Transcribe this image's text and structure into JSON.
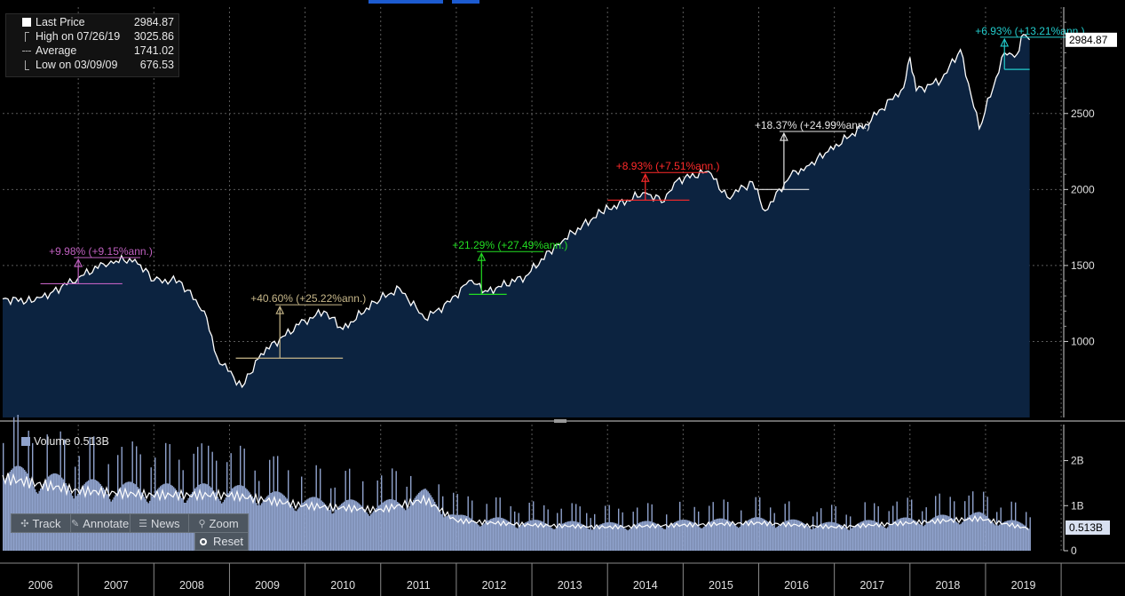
{
  "legend": {
    "last_price_label": "Last Price",
    "last_price_value": "2984.87",
    "high_label": "High on 07/26/19",
    "high_value": "3025.86",
    "average_label": "Average",
    "average_value": "1741.02",
    "low_label": "Low on 03/09/09",
    "low_value": "676.53"
  },
  "volume_legend": {
    "label": "Volume 0.513B"
  },
  "toolbar": {
    "track": "Track",
    "annotate": "Annotate",
    "news": "News",
    "zoom": "Zoom",
    "reset": "Reset"
  },
  "colors": {
    "price_line": "#ffffff",
    "area_fill": "#0c2340",
    "volume_fill": "#8fa2cc",
    "gridline": "#5a5a5a",
    "purple": "#c060c0",
    "tan": "#c8b88a",
    "green": "#22dd22",
    "red": "#ff2a2a",
    "white": "#e6e6e6",
    "cyan": "#22cccc"
  },
  "chart_data": [
    {
      "type": "line",
      "title": "",
      "series": [
        {
          "x": [
            "2006-01",
            "2006-06",
            "2006-09",
            "2007-01",
            "2007-05",
            "2007-07",
            "2007-10",
            "2008-01",
            "2008-05",
            "2008-09",
            "2008-11",
            "2009-03",
            "2009-06",
            "2009-12",
            "2010-04",
            "2010-07",
            "2010-12",
            "2011-04",
            "2011-08",
            "2011-12",
            "2012-03",
            "2012-06",
            "2012-12",
            "2013-05",
            "2013-12",
            "2014-07",
            "2014-10",
            "2014-12",
            "2015-05",
            "2015-08",
            "2015-12",
            "2016-02",
            "2016-06",
            "2016-09",
            "2016-12",
            "2017-06",
            "2017-12",
            "2018-01",
            "2018-02",
            "2018-06",
            "2018-09",
            "2018-12",
            "2019-04",
            "2019-06",
            "2019-07",
            "2019-08"
          ],
          "values": [
            1280,
            1265,
            1330,
            1420,
            1510,
            1530,
            1540,
            1400,
            1400,
            1200,
            900,
            700,
            920,
            1110,
            1200,
            1080,
            1260,
            1350,
            1150,
            1260,
            1400,
            1330,
            1430,
            1640,
            1850,
            1980,
            1920,
            2060,
            2120,
            1950,
            2050,
            1860,
            2090,
            2160,
            2250,
            2430,
            2670,
            2870,
            2650,
            2720,
            2920,
            2400,
            2900,
            2890,
            3020,
            2984.87
          ]
        }
      ],
      "right_axis_ticks": [
        "1000",
        "1500",
        "2000",
        "2500"
      ],
      "last_value_label": "2984.87",
      "ylim": [
        500,
        3200
      ],
      "xlim": [
        "2006-01",
        "2019-12"
      ],
      "annotations": [
        {
          "label": "+9.98% (+9.15%ann.)",
          "color": "purple",
          "base": 1380,
          "peak": 1540,
          "x_start": "2006-07",
          "x_end": "2007-08",
          "x_arrow": "2007-01"
        },
        {
          "label": "+40.60% (+25.22%ann.)",
          "color": "tan",
          "base": 890,
          "peak": 1230,
          "x_start": "2009-02",
          "x_end": "2010-07",
          "x_arrow": "2009-09"
        },
        {
          "label": "+21.29% (+27.49%ann.)",
          "color": "green",
          "base": 1310,
          "peak": 1580,
          "x_start": "2012-03",
          "x_end": "2012-09",
          "x_arrow": "2012-05"
        },
        {
          "label": "+8.93% (+7.51%ann.)",
          "color": "red",
          "base": 1930,
          "peak": 2100,
          "x_start": "2014-01",
          "x_end": "2015-02",
          "x_arrow": "2014-07"
        },
        {
          "label": "+18.37% (+24.99%ann.)",
          "color": "white",
          "base": 2000,
          "peak": 2370,
          "x_start": "2016-01",
          "x_end": "2016-09",
          "x_arrow": "2016-05"
        },
        {
          "label": "+6.93% (+13.21%ann.)",
          "color": "cyan",
          "base": 2790,
          "peak": 2990,
          "x_start": "2019-04",
          "x_end": "2019-08",
          "x_arrow": "2019-04"
        }
      ]
    },
    {
      "type": "bar",
      "series": [
        {
          "name": "Volume",
          "x": [
            "2006-01",
            "2007-01",
            "2008-01",
            "2009-01",
            "2010-01",
            "2011-01",
            "2011-08",
            "2012-01",
            "2013-01",
            "2014-01",
            "2015-01",
            "2016-01",
            "2017-01",
            "2018-01",
            "2018-12",
            "2019-08"
          ],
          "values": [
            1.7,
            1.4,
            1.3,
            1.3,
            1.05,
            0.95,
            1.2,
            0.7,
            0.6,
            0.55,
            0.6,
            0.65,
            0.55,
            0.65,
            0.75,
            0.513
          ]
        }
      ],
      "right_axis_ticks": [
        "0",
        "1B",
        "2B"
      ],
      "last_value_label": "0.513B",
      "ylim": [
        0,
        2.8
      ]
    }
  ],
  "x_axis_ticks": [
    "2006",
    "2007",
    "2008",
    "2009",
    "2010",
    "2011",
    "2012",
    "2013",
    "2014",
    "2015",
    "2016",
    "2017",
    "2018",
    "2019"
  ]
}
